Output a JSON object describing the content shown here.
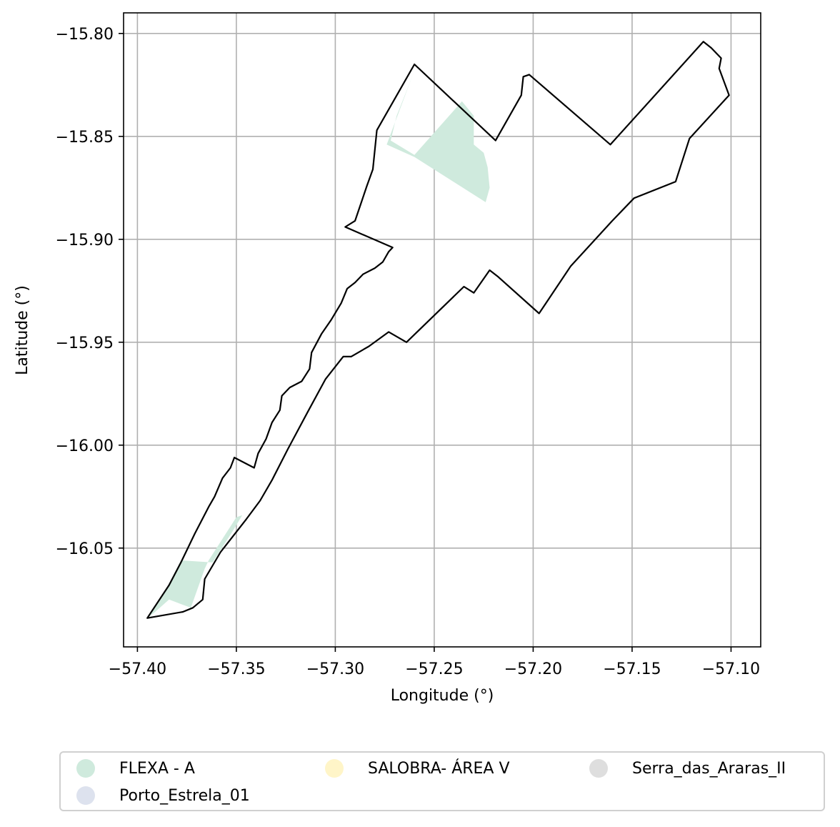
{
  "chart_data": {
    "type": "map",
    "xlabel": "Longitude (°)",
    "ylabel": "Latitude (°)",
    "xlim": [
      -57.407,
      -57.085
    ],
    "ylim": [
      -16.098,
      -15.79
    ],
    "xticks": [
      -57.4,
      -57.35,
      -57.3,
      -57.25,
      -57.2,
      -57.15,
      -57.1
    ],
    "xtick_labels": [
      "−57.40",
      "−57.35",
      "−57.30",
      "−57.25",
      "−57.20",
      "−57.15",
      "−57.10"
    ],
    "yticks": [
      -15.8,
      -15.85,
      -15.9,
      -15.95,
      -16.0,
      -16.05
    ],
    "ytick_labels": [
      "−15.80",
      "−15.85",
      "−15.90",
      "−15.95",
      "−16.00",
      "−16.05"
    ],
    "grid": true,
    "legend_placement": "bottom-center",
    "legend": [
      {
        "label": "FLEXA - A",
        "color": "#cfeadd"
      },
      {
        "label": "Porto_Estrela_01",
        "color": "#dde2ee"
      },
      {
        "label": "SALOBRA- ÁREA V",
        "color": "#fff5c8"
      },
      {
        "label": "Serra_das_Araras_II",
        "color": "#dedede"
      }
    ],
    "boundary": [
      [
        -57.395,
        -16.084
      ],
      [
        -57.384,
        -16.068
      ],
      [
        -57.378,
        -16.057
      ],
      [
        -57.371,
        -16.043
      ],
      [
        -57.364,
        -16.03
      ],
      [
        -57.361,
        -16.025
      ],
      [
        -57.357,
        -16.016
      ],
      [
        -57.353,
        -16.011
      ],
      [
        -57.351,
        -16.006
      ],
      [
        -57.341,
        -16.011
      ],
      [
        -57.339,
        -16.004
      ],
      [
        -57.335,
        -15.997
      ],
      [
        -57.332,
        -15.989
      ],
      [
        -57.328,
        -15.983
      ],
      [
        -57.327,
        -15.976
      ],
      [
        -57.323,
        -15.972
      ],
      [
        -57.317,
        -15.969
      ],
      [
        -57.313,
        -15.963
      ],
      [
        -57.312,
        -15.955
      ],
      [
        -57.307,
        -15.946
      ],
      [
        -57.302,
        -15.939
      ],
      [
        -57.297,
        -15.931
      ],
      [
        -57.294,
        -15.924
      ],
      [
        -57.29,
        -15.921
      ],
      [
        -57.286,
        -15.917
      ],
      [
        -57.28,
        -15.914
      ],
      [
        -57.276,
        -15.911
      ],
      [
        -57.273,
        -15.906
      ],
      [
        -57.271,
        -15.904
      ],
      [
        -57.295,
        -15.894
      ],
      [
        -57.29,
        -15.891
      ],
      [
        -57.284,
        -15.874
      ],
      [
        -57.281,
        -15.866
      ],
      [
        -57.279,
        -15.847
      ],
      [
        -57.26,
        -15.815
      ],
      [
        -57.219,
        -15.852
      ],
      [
        -57.206,
        -15.83
      ],
      [
        -57.205,
        -15.821
      ],
      [
        -57.202,
        -15.82
      ],
      [
        -57.161,
        -15.854
      ],
      [
        -57.114,
        -15.804
      ],
      [
        -57.11,
        -15.807
      ],
      [
        -57.105,
        -15.812
      ],
      [
        -57.106,
        -15.817
      ],
      [
        -57.101,
        -15.83
      ],
      [
        -57.121,
        -15.851
      ],
      [
        -57.128,
        -15.872
      ],
      [
        -57.149,
        -15.88
      ],
      [
        -57.16,
        -15.891
      ],
      [
        -57.181,
        -15.913
      ],
      [
        -57.197,
        -15.936
      ],
      [
        -57.218,
        -15.918
      ],
      [
        -57.222,
        -15.915
      ],
      [
        -57.23,
        -15.926
      ],
      [
        -57.235,
        -15.923
      ],
      [
        -57.264,
        -15.95
      ],
      [
        -57.273,
        -15.945
      ],
      [
        -57.283,
        -15.952
      ],
      [
        -57.292,
        -15.957
      ],
      [
        -57.296,
        -15.957
      ],
      [
        -57.305,
        -15.968
      ],
      [
        -57.314,
        -15.984
      ],
      [
        -57.324,
        -16.002
      ],
      [
        -57.332,
        -16.017
      ],
      [
        -57.338,
        -16.027
      ],
      [
        -57.345,
        -16.036
      ],
      [
        -57.358,
        -16.052
      ],
      [
        -57.366,
        -16.065
      ],
      [
        -57.367,
        -16.075
      ],
      [
        -57.372,
        -16.079
      ],
      [
        -57.377,
        -16.081
      ],
      [
        -57.395,
        -16.084
      ]
    ],
    "areas": [
      {
        "series": "FLEXA - A",
        "coords": [
          [
            -57.274,
            -15.854
          ],
          [
            -57.26,
            -15.818
          ],
          [
            -57.262,
            -15.823
          ],
          [
            -57.264,
            -15.828
          ],
          [
            -57.269,
            -15.84
          ],
          [
            -57.272,
            -15.852
          ],
          [
            -57.26,
            -15.859
          ],
          [
            -57.236,
            -15.833
          ],
          [
            -57.23,
            -15.84
          ],
          [
            -57.23,
            -15.854
          ],
          [
            -57.225,
            -15.858
          ],
          [
            -57.223,
            -15.865
          ],
          [
            -57.222,
            -15.875
          ],
          [
            -57.224,
            -15.882
          ],
          [
            -57.26,
            -15.86
          ]
        ]
      },
      {
        "series": "FLEXA - A",
        "coords": [
          [
            -57.395,
            -16.084
          ],
          [
            -57.385,
            -16.069
          ],
          [
            -57.378,
            -16.056
          ],
          [
            -57.362,
            -16.057
          ],
          [
            -57.358,
            -16.051
          ],
          [
            -57.352,
            -16.042
          ],
          [
            -57.347,
            -16.034
          ],
          [
            -57.35,
            -16.035
          ],
          [
            -57.364,
            -16.056
          ],
          [
            -57.366,
            -16.06
          ],
          [
            -57.373,
            -16.079
          ],
          [
            -57.384,
            -16.075
          ],
          [
            -57.391,
            -16.081
          ]
        ]
      }
    ]
  }
}
